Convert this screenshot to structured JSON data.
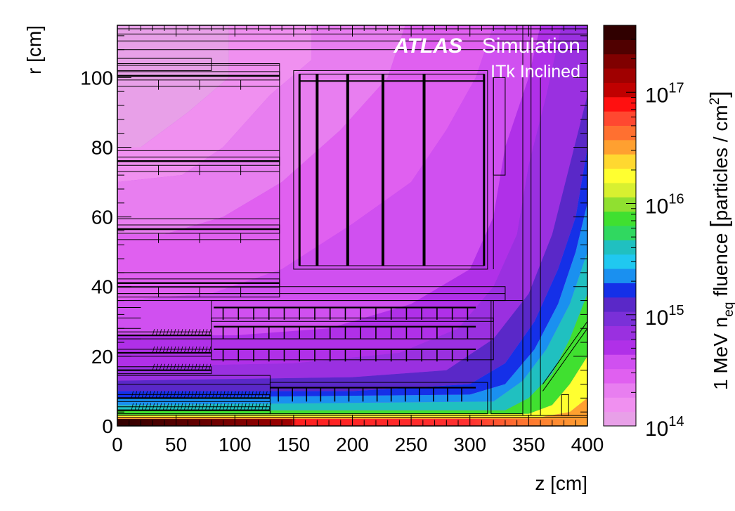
{
  "chart_data": {
    "type": "heatmap",
    "annotation": {
      "brand": "ATLAS",
      "subtitle": "Simulation",
      "label": "ITk Inclined"
    },
    "xlabel": "z [cm]",
    "ylabel": "r [cm]",
    "xlim": [
      0,
      400
    ],
    "ylim": [
      0,
      115
    ],
    "xticks": [
      "0",
      "50",
      "100",
      "150",
      "200",
      "250",
      "300",
      "350",
      "400"
    ],
    "yticks": [
      "0",
      "20",
      "40",
      "60",
      "80",
      "100"
    ],
    "colorbar": {
      "label_main": "1 MeV n",
      "label_sub": "eq",
      "label_tail": " fluence ",
      "label_unit": "particles / cm",
      "label_unit_sup": "2",
      "scale": "log",
      "range": [
        100000000000000.0,
        4e+17
      ],
      "ticks": [
        {
          "base": "10",
          "exp": "14",
          "value": 100000000000000.0
        },
        {
          "base": "10",
          "exp": "15",
          "value": 1000000000000000.0
        },
        {
          "base": "10",
          "exp": "16",
          "value": 1e+16
        },
        {
          "base": "10",
          "exp": "17",
          "value": 1e+17
        }
      ],
      "colors": [
        "#e8a0e8",
        "#f090f0",
        "#e87ef0",
        "#e060f0",
        "#d050f0",
        "#b030e8",
        "#9a30e0",
        "#7a30d8",
        "#5a28c8",
        "#1530e8",
        "#1a90f0",
        "#20c8f0",
        "#20c0c0",
        "#30d860",
        "#40e030",
        "#90e030",
        "#d8f030",
        "#ffff30",
        "#ffd830",
        "#ffa030",
        "#ff7030",
        "#ff4830",
        "#ff1010",
        "#c00000",
        "#a00000",
        "#800000",
        "#500000",
        "#300000"
      ]
    },
    "fluence_regions": [
      {
        "z": [
          0,
          400
        ],
        "r": [
          0,
          1.5
        ],
        "fluence": 2e+17
      },
      {
        "z": [
          0,
          400
        ],
        "r": [
          1.5,
          3
        ],
        "fluence": 1.5e+16
      },
      {
        "z": [
          0,
          400
        ],
        "r": [
          3,
          6
        ],
        "fluence": 6000000000000000.0
      },
      {
        "z": [
          0,
          300
        ],
        "r": [
          6,
          12
        ],
        "fluence": 2500000000000000.0
      },
      {
        "z": [
          0,
          250
        ],
        "r": [
          12,
          20
        ],
        "fluence": 1300000000000000.0
      },
      {
        "z": [
          0,
          200
        ],
        "r": [
          20,
          35
        ],
        "fluence": 700000000000000.0
      },
      {
        "z": [
          0,
          150
        ],
        "r": [
          35,
          60
        ],
        "fluence": 400000000000000.0
      },
      {
        "z": [
          0,
          100
        ],
        "r": [
          60,
          115
        ],
        "fluence": 200000000000000.0
      },
      {
        "z": [
          350,
          400
        ],
        "r": [
          10,
          115
        ],
        "fluence": 1600000000000000.0
      },
      {
        "z": [
          375,
          400
        ],
        "r": [
          3,
          40
        ],
        "fluence": 5000000000000000.0
      }
    ]
  }
}
